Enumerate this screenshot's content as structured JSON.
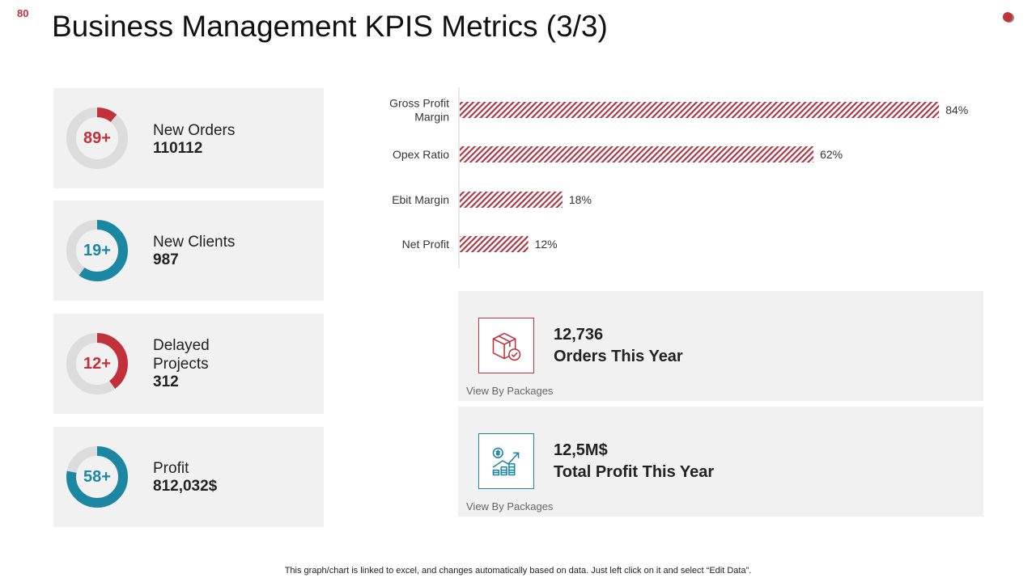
{
  "slide_number": "80",
  "title": "Business Management KPIS Metrics (3/3)",
  "colors": {
    "red": "#c0313b",
    "teal": "#1c87a3",
    "ring_bg": "#dcdcdc",
    "card_bg": "#f1f1f1"
  },
  "kpis": [
    {
      "donut_label": "89+",
      "percent": 11,
      "color": "red",
      "label": "New Orders",
      "value": "110112"
    },
    {
      "donut_label": "19+",
      "percent": 60,
      "color": "teal",
      "label": "New Clients",
      "value": "987"
    },
    {
      "donut_label": "12+",
      "percent": 40,
      "color": "red",
      "label_line1": "Delayed",
      "label_line2": "Projects",
      "value": "312"
    },
    {
      "donut_label": "58+",
      "percent": 78,
      "color": "teal",
      "label": "Profit",
      "value": "812,032$"
    }
  ],
  "chart_data": {
    "type": "bar",
    "orientation": "horizontal",
    "categories": [
      "Gross Profit Margin",
      "Opex Ratio",
      "Ebit Margin",
      "Net Profit"
    ],
    "values": [
      84,
      62,
      18,
      12
    ],
    "value_labels": [
      "84%",
      "62%",
      "18%",
      "12%"
    ],
    "xlim": [
      0,
      100
    ],
    "title": "",
    "xlabel": "",
    "ylabel": "",
    "bar_color": "#c0313b",
    "fill_pattern": "diagonal-hatch",
    "grid": false
  },
  "stats": [
    {
      "value": "12,736",
      "label": "Orders This Year",
      "link": "View By Packages",
      "icon": "package-check-icon",
      "color": "red"
    },
    {
      "value": "12,5M$",
      "label": "Total Profit This Year",
      "link": "View By Packages",
      "icon": "profit-growth-icon",
      "color": "teal"
    }
  ],
  "footer": "This graph/chart is linked to excel, and changes automatically based on data. Just left click on it and select “Edit Data”."
}
